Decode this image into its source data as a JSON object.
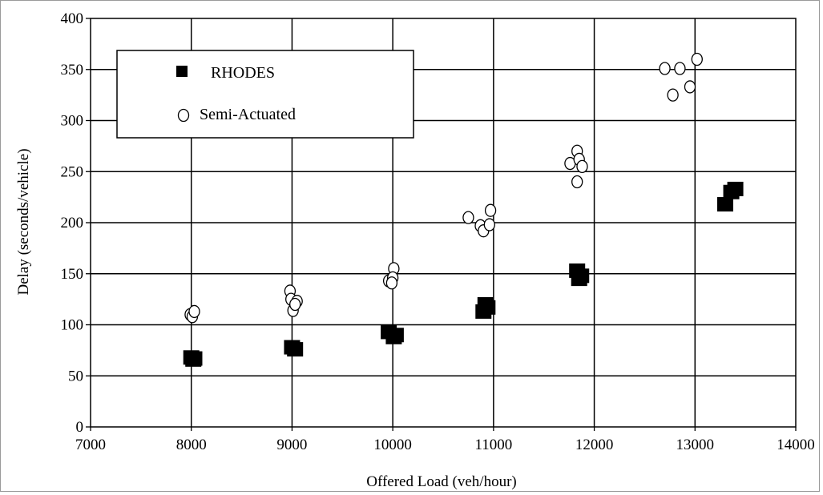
{
  "chart_data": {
    "type": "scatter",
    "title": "",
    "xlabel": "Offered Load (veh/hour)",
    "ylabel": "Delay (seconds/vehicle)",
    "xlim": [
      7000,
      14000
    ],
    "ylim": [
      0,
      400
    ],
    "xticks": [
      7000,
      8000,
      9000,
      10000,
      11000,
      12000,
      13000,
      14000
    ],
    "yticks": [
      0,
      50,
      100,
      150,
      200,
      250,
      300,
      350,
      400
    ],
    "xtick_labels": [
      "7000",
      "8000",
      "9000",
      "10000",
      "11000",
      "12000",
      "13000",
      "14000"
    ],
    "ytick_labels": [
      "0",
      "50",
      "100",
      "150",
      "200",
      "250",
      "300",
      "350",
      "400"
    ],
    "grid": true,
    "legend_position": "top-left",
    "series": [
      {
        "name": "RHODES",
        "marker": "filled-square",
        "color": "#000000",
        "points": [
          [
            8000,
            68
          ],
          [
            8020,
            66
          ],
          [
            8030,
            67
          ],
          [
            9000,
            78
          ],
          [
            9030,
            76
          ],
          [
            9960,
            93
          ],
          [
            10030,
            90
          ],
          [
            10010,
            88
          ],
          [
            10900,
            113
          ],
          [
            10940,
            117
          ],
          [
            10920,
            120
          ],
          [
            11830,
            153
          ],
          [
            11850,
            145
          ],
          [
            11870,
            148
          ],
          [
            13300,
            218
          ],
          [
            13360,
            230
          ],
          [
            13400,
            233
          ]
        ]
      },
      {
        "name": "Semi-Actuated",
        "marker": "open-circle",
        "color": "#000000",
        "points": [
          [
            7990,
            110
          ],
          [
            8010,
            108
          ],
          [
            8030,
            113
          ],
          [
            8980,
            133
          ],
          [
            8990,
            125
          ],
          [
            9010,
            114
          ],
          [
            9050,
            123
          ],
          [
            9030,
            120
          ],
          [
            9960,
            143
          ],
          [
            10010,
            155
          ],
          [
            10000,
            146
          ],
          [
            9990,
            141
          ],
          [
            10750,
            205
          ],
          [
            10870,
            197
          ],
          [
            10900,
            192
          ],
          [
            10960,
            198
          ],
          [
            10970,
            212
          ],
          [
            11760,
            258
          ],
          [
            11830,
            270
          ],
          [
            11850,
            262
          ],
          [
            11880,
            255
          ],
          [
            11830,
            240
          ],
          [
            12700,
            351
          ],
          [
            12780,
            325
          ],
          [
            12850,
            351
          ],
          [
            12950,
            333
          ],
          [
            13020,
            360
          ]
        ]
      }
    ]
  }
}
